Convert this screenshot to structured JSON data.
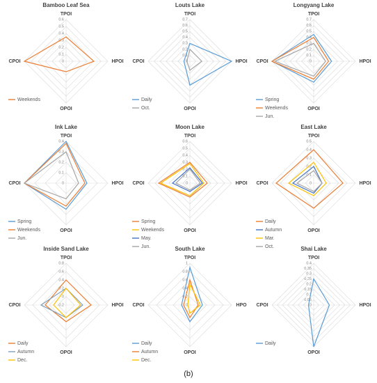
{
  "caption": "(b)",
  "chart_data": [
    {
      "type": "radar",
      "title": "Bamboo Leaf Sea",
      "categories": [
        "TPOI",
        "HPOI",
        "OPOI",
        "CPOI"
      ],
      "ylim": [
        0,
        0.6
      ],
      "yticks": [
        0,
        0.1,
        0.2,
        0.3,
        0.4,
        0.5,
        0.6
      ],
      "series": [
        {
          "name": "Weekends",
          "color": "#ED7D31",
          "values": [
            0.35,
            0.4,
            0.15,
            0.6
          ]
        }
      ]
    },
    {
      "type": "radar",
      "title": "Louts Lake",
      "categories": [
        "TPOI",
        "HPOI",
        "OPOI",
        "CPOI"
      ],
      "ylim": [
        0,
        0.7
      ],
      "yticks": [
        0,
        0.1,
        0.2,
        0.3,
        0.4,
        0.5,
        0.6,
        0.7
      ],
      "series": [
        {
          "name": "Daily",
          "color": "#5B9BD5",
          "values": [
            0.3,
            0.7,
            0.4,
            0.1
          ]
        },
        {
          "name": "Oct.",
          "color": "#A5A5A5",
          "values": [
            0.2,
            0.2,
            0.15,
            0.05
          ]
        }
      ]
    },
    {
      "type": "radar",
      "title": "Longyang Lake",
      "categories": [
        "TPOI",
        "HPOI",
        "OPOI",
        "CPOI"
      ],
      "ylim": [
        0,
        0.7
      ],
      "yticks": [
        0,
        0.1,
        0.2,
        0.3,
        0.4,
        0.5,
        0.6,
        0.7
      ],
      "series": [
        {
          "name": "Spring",
          "color": "#5B9BD5",
          "values": [
            0.45,
            0.3,
            0.35,
            0.7
          ]
        },
        {
          "name": "Weekends",
          "color": "#ED7D31",
          "values": [
            0.4,
            0.25,
            0.3,
            0.7
          ]
        },
        {
          "name": "Jun.",
          "color": "#A5A5A5",
          "values": [
            0.3,
            0.2,
            0.25,
            0.65
          ]
        }
      ]
    },
    {
      "type": "radar",
      "title": "Ink Lake",
      "categories": [
        "TPOI",
        "HPOI",
        "OPOI",
        "CPOI"
      ],
      "ylim": [
        0,
        0.4
      ],
      "yticks": [
        0,
        0.1,
        0.2,
        0.3,
        0.4
      ],
      "series": [
        {
          "name": "Spring",
          "color": "#5B9BD5",
          "values": [
            0.4,
            0.2,
            0.25,
            0.4
          ]
        },
        {
          "name": "Weekends",
          "color": "#ED7D31",
          "values": [
            0.38,
            0.18,
            0.22,
            0.4
          ]
        },
        {
          "name": "Jun.",
          "color": "#A5A5A5",
          "values": [
            0.3,
            0.12,
            0.15,
            0.4
          ]
        }
      ]
    },
    {
      "type": "radar",
      "title": "Moon Lake",
      "categories": [
        "TPOI",
        "HPOI",
        "OPOI",
        "CPOI"
      ],
      "ylim": [
        0,
        0.6
      ],
      "yticks": [
        0,
        0.1,
        0.2,
        0.3,
        0.4,
        0.5,
        0.6
      ],
      "series": [
        {
          "name": "Spring",
          "color": "#ED7D31",
          "values": [
            0.3,
            0.25,
            0.2,
            0.45
          ]
        },
        {
          "name": "Weekends",
          "color": "#FFC000",
          "values": [
            0.28,
            0.2,
            0.18,
            0.42
          ]
        },
        {
          "name": "May.",
          "color": "#4472C4",
          "values": [
            0.22,
            0.18,
            0.12,
            0.25
          ]
        },
        {
          "name": "Jun.",
          "color": "#A5A5A5",
          "values": [
            0.2,
            0.15,
            0.1,
            0.2
          ]
        }
      ]
    },
    {
      "type": "radar",
      "title": "East Lake",
      "categories": [
        "TPOI",
        "HPOI",
        "OPOI",
        "CPOI"
      ],
      "ylim": [
        0,
        0.5
      ],
      "yticks": [
        0,
        0.1,
        0.2,
        0.3,
        0.4,
        0.5
      ],
      "series": [
        {
          "name": "Daily",
          "color": "#ED7D31",
          "values": [
            0.4,
            0.35,
            0.3,
            0.45
          ]
        },
        {
          "name": "Autumn",
          "color": "#4472C4",
          "values": [
            0.2,
            0.1,
            0.12,
            0.25
          ]
        },
        {
          "name": "Mar.",
          "color": "#FFC000",
          "values": [
            0.25,
            0.15,
            0.15,
            0.3
          ]
        },
        {
          "name": "Oct.",
          "color": "#A5A5A5",
          "values": [
            0.15,
            0.1,
            0.1,
            0.2
          ]
        }
      ]
    },
    {
      "type": "radar",
      "title": "Inside Sand Lake",
      "categories": [
        "TPOI",
        "HPOI",
        "OPOI",
        "CPOI"
      ],
      "ylim": [
        -0.2,
        0.8
      ],
      "yticks": [
        -0.2,
        0,
        0.2,
        0.4,
        0.6,
        0.8
      ],
      "series": [
        {
          "name": "Daily",
          "color": "#ED7D31",
          "values": [
            0.4,
            0.4,
            0.2,
            0.3
          ]
        },
        {
          "name": "Autumn",
          "color": "#7F9FBF",
          "values": [
            0.2,
            0.2,
            0.1,
            0.4
          ]
        },
        {
          "name": "Dec.",
          "color": "#FFC000",
          "values": [
            0.2,
            0.15,
            0.1,
            0.1
          ]
        }
      ]
    },
    {
      "type": "radar",
      "title": "South Lake",
      "categories": [
        "TPOI",
        "HPO",
        "OPOI",
        "CPOI"
      ],
      "ylim": [
        0,
        1
      ],
      "yticks": [
        0,
        0.2,
        0.4,
        0.6,
        0.8,
        1
      ],
      "series": [
        {
          "name": "Daily",
          "color": "#5B9BD5",
          "values": [
            0.9,
            0.3,
            0.4,
            0.2
          ]
        },
        {
          "name": "Autumn",
          "color": "#ED7D31",
          "values": [
            0.6,
            0.2,
            0.3,
            0.15
          ]
        },
        {
          "name": "Dec.",
          "color": "#FFC000",
          "values": [
            0.5,
            0.25,
            0.2,
            0.05
          ]
        }
      ]
    },
    {
      "type": "radar",
      "title": "Shai Lake",
      "categories": [
        "TPOI",
        "HPOI",
        "OPOI",
        "CPOI"
      ],
      "ylim": [
        0,
        0.4
      ],
      "yticks": [
        0,
        0.05,
        0.1,
        0.15,
        0.2,
        0.25,
        0.3,
        0.35,
        0.4
      ],
      "series": [
        {
          "name": "Daily",
          "color": "#5B9BD5",
          "values": [
            0.25,
            0.15,
            0.4,
            0.05
          ]
        }
      ]
    }
  ]
}
